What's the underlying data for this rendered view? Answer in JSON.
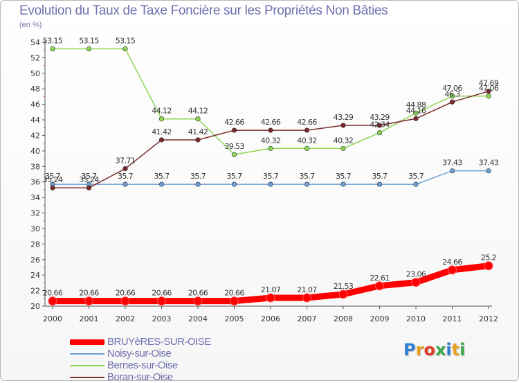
{
  "chart_data": {
    "type": "line",
    "title": "Evolution du Taux de Taxe Foncière sur les Propriétés Non Bâties",
    "ylabel": "(en %)",
    "xlabel": "",
    "ylim": [
      20,
      54
    ],
    "yticks": [
      20,
      22,
      24,
      26,
      28,
      30,
      32,
      34,
      36,
      38,
      40,
      42,
      44,
      46,
      48,
      50,
      52,
      54
    ],
    "grid": false,
    "legend_position": "bottom-left",
    "x": [
      "2000",
      "2001",
      "2002",
      "2003",
      "2004",
      "2005",
      "2006",
      "2007",
      "2008",
      "2009",
      "2010",
      "2011",
      "2012"
    ],
    "series": [
      {
        "name": "BRUYèRES-SUR-OISE",
        "color": "#ff0000",
        "values": [
          20.66,
          20.66,
          20.66,
          20.66,
          20.66,
          20.66,
          21.07,
          21.07,
          21.53,
          22.61,
          23.06,
          24.66,
          25.2
        ],
        "labels": [
          "20.66",
          "20.66",
          "20.66",
          "20.66",
          "20.66",
          "20.66",
          "21.07",
          "21.07",
          "21.53",
          "22.61",
          "23.06",
          "24.66",
          "25.2"
        ]
      },
      {
        "name": "Noisy-sur-Oise",
        "color": "#6a9fd4",
        "values": [
          35.7,
          35.7,
          35.7,
          35.7,
          35.7,
          35.7,
          35.7,
          35.7,
          35.7,
          35.7,
          35.7,
          37.43,
          37.43
        ],
        "labels": [
          "35.7",
          "35.7",
          "35.7",
          "35.7",
          "35.7",
          "35.7",
          "35.7",
          "35.7",
          "35.7",
          "35.7",
          "35.7",
          "37.43",
          "37.43"
        ]
      },
      {
        "name": "Bernes-sur-Oise",
        "color": "#8dd655",
        "values": [
          53.15,
          53.15,
          53.15,
          44.12,
          44.12,
          39.53,
          40.32,
          40.32,
          40.32,
          42.34,
          44.88,
          47.06,
          47.06
        ],
        "labels": [
          "53.15",
          "53.15",
          "53.15",
          "44.12",
          "44.12",
          "39.53",
          "40.32",
          "40.32",
          "40.32",
          "42.34",
          "44.88",
          "47.06",
          "47.06"
        ]
      },
      {
        "name": "Boran-sur-Oise",
        "color": "#7a2a2a",
        "values": [
          35.24,
          35.24,
          37.71,
          41.42,
          41.42,
          42.66,
          42.66,
          42.66,
          43.29,
          43.29,
          44.16,
          46.3,
          47.69
        ],
        "labels": [
          "35.24",
          "35.24",
          "37.71",
          "41.42",
          "41.42",
          "42.66",
          "42.66",
          "42.66",
          "43.29",
          "43.29",
          "44.16",
          "46.3",
          "47.69"
        ]
      }
    ]
  },
  "legend": [
    {
      "label": "BRUYèRES-SUR-OISE",
      "color": "#ff0000"
    },
    {
      "label": "Noisy-sur-Oise",
      "color": "#6a9fd4"
    },
    {
      "label": "Bernes-sur-Oise",
      "color": "#8dd655"
    },
    {
      "label": "Boran-sur-Oise",
      "color": "#7a2a2a"
    }
  ],
  "logo": {
    "letters": [
      "P",
      "r",
      "o",
      "x",
      "i",
      "t",
      "i"
    ],
    "colors": [
      "#2e7fd1",
      "#e8a020",
      "#e03c2c",
      "#3aa84a",
      "#2e7fd1",
      "#e8a020",
      "#3aa84a"
    ]
  }
}
